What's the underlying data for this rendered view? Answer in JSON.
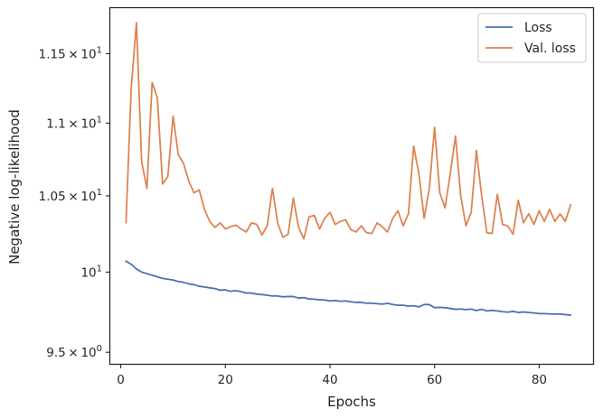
{
  "chart_data": {
    "type": "line",
    "title": "",
    "xlabel": "Epochs",
    "ylabel": "Negative log-likelihood",
    "yscale": "log",
    "xlim": [
      -2,
      90.3
    ],
    "ylim": [
      9.43,
      11.84
    ],
    "grid": false,
    "legend_position": "top-right",
    "x_ticks": [
      0,
      20,
      40,
      60,
      80
    ],
    "x_tick_labels": [
      "0",
      "20",
      "40",
      "60",
      "80"
    ],
    "y_ticks": [
      9.5,
      10,
      10.5,
      11,
      11.5
    ],
    "y_tick_labels": [
      {
        "mantissa": "9.5",
        "cross": "×",
        "base": "10",
        "exp": "0"
      },
      {
        "mantissa": "",
        "cross": "",
        "base": "10",
        "exp": "1"
      },
      {
        "mantissa": "1.05",
        "cross": "×",
        "base": "10",
        "exp": "1"
      },
      {
        "mantissa": "1.1",
        "cross": "×",
        "base": "10",
        "exp": "1"
      },
      {
        "mantissa": "1.15",
        "cross": "×",
        "base": "10",
        "exp": "1"
      }
    ],
    "x": [
      1,
      2,
      3,
      4,
      5,
      6,
      7,
      8,
      9,
      10,
      11,
      12,
      13,
      14,
      15,
      16,
      17,
      18,
      19,
      20,
      21,
      22,
      23,
      24,
      25,
      26,
      27,
      28,
      29,
      30,
      31,
      32,
      33,
      34,
      35,
      36,
      37,
      38,
      39,
      40,
      41,
      42,
      43,
      44,
      45,
      46,
      47,
      48,
      49,
      50,
      51,
      52,
      53,
      54,
      55,
      56,
      57,
      58,
      59,
      60,
      61,
      62,
      63,
      64,
      65,
      66,
      67,
      68,
      69,
      70,
      71,
      72,
      73,
      74,
      75,
      76,
      77,
      78,
      79,
      80,
      81,
      82,
      83,
      84,
      85,
      86
    ],
    "series": [
      {
        "name": "Loss",
        "color": "#4c72b0",
        "values": [
          10.07,
          10.05,
          10.02,
          10.0,
          9.99,
          9.98,
          9.97,
          9.96,
          9.955,
          9.95,
          9.94,
          9.935,
          9.925,
          9.92,
          9.91,
          9.905,
          9.9,
          9.895,
          9.885,
          9.887,
          9.878,
          9.882,
          9.876,
          9.867,
          9.867,
          9.86,
          9.857,
          9.853,
          9.848,
          9.848,
          9.843,
          9.845,
          9.845,
          9.835,
          9.838,
          9.83,
          9.828,
          9.825,
          9.823,
          9.817,
          9.82,
          9.815,
          9.817,
          9.812,
          9.808,
          9.808,
          9.803,
          9.803,
          9.8,
          9.797,
          9.802,
          9.795,
          9.79,
          9.79,
          9.785,
          9.787,
          9.78,
          9.795,
          9.794,
          9.775,
          9.777,
          9.775,
          9.77,
          9.765,
          9.767,
          9.763,
          9.766,
          9.757,
          9.765,
          9.755,
          9.758,
          9.755,
          9.75,
          9.747,
          9.752,
          9.745,
          9.748,
          9.745,
          9.742,
          9.738,
          9.738,
          9.736,
          9.735,
          9.735,
          9.732,
          9.728
        ]
      },
      {
        "name": "Val. loss",
        "color": "#dd8452",
        "values": [
          10.32,
          11.25,
          11.73,
          10.73,
          10.55,
          11.29,
          11.18,
          10.58,
          10.63,
          11.05,
          10.78,
          10.72,
          10.6,
          10.52,
          10.54,
          10.41,
          10.33,
          10.29,
          10.32,
          10.28,
          10.295,
          10.305,
          10.28,
          10.26,
          10.32,
          10.31,
          10.24,
          10.3,
          10.55,
          10.32,
          10.225,
          10.245,
          10.485,
          10.29,
          10.215,
          10.36,
          10.37,
          10.28,
          10.35,
          10.39,
          10.31,
          10.33,
          10.34,
          10.275,
          10.26,
          10.3,
          10.255,
          10.25,
          10.32,
          10.295,
          10.26,
          10.35,
          10.4,
          10.3,
          10.38,
          10.84,
          10.65,
          10.35,
          10.55,
          10.97,
          10.52,
          10.42,
          10.65,
          10.91,
          10.5,
          10.3,
          10.39,
          10.81,
          10.5,
          10.255,
          10.25,
          10.51,
          10.31,
          10.3,
          10.245,
          10.47,
          10.32,
          10.38,
          10.31,
          10.4,
          10.33,
          10.41,
          10.33,
          10.38,
          10.33,
          10.44
        ]
      }
    ]
  }
}
